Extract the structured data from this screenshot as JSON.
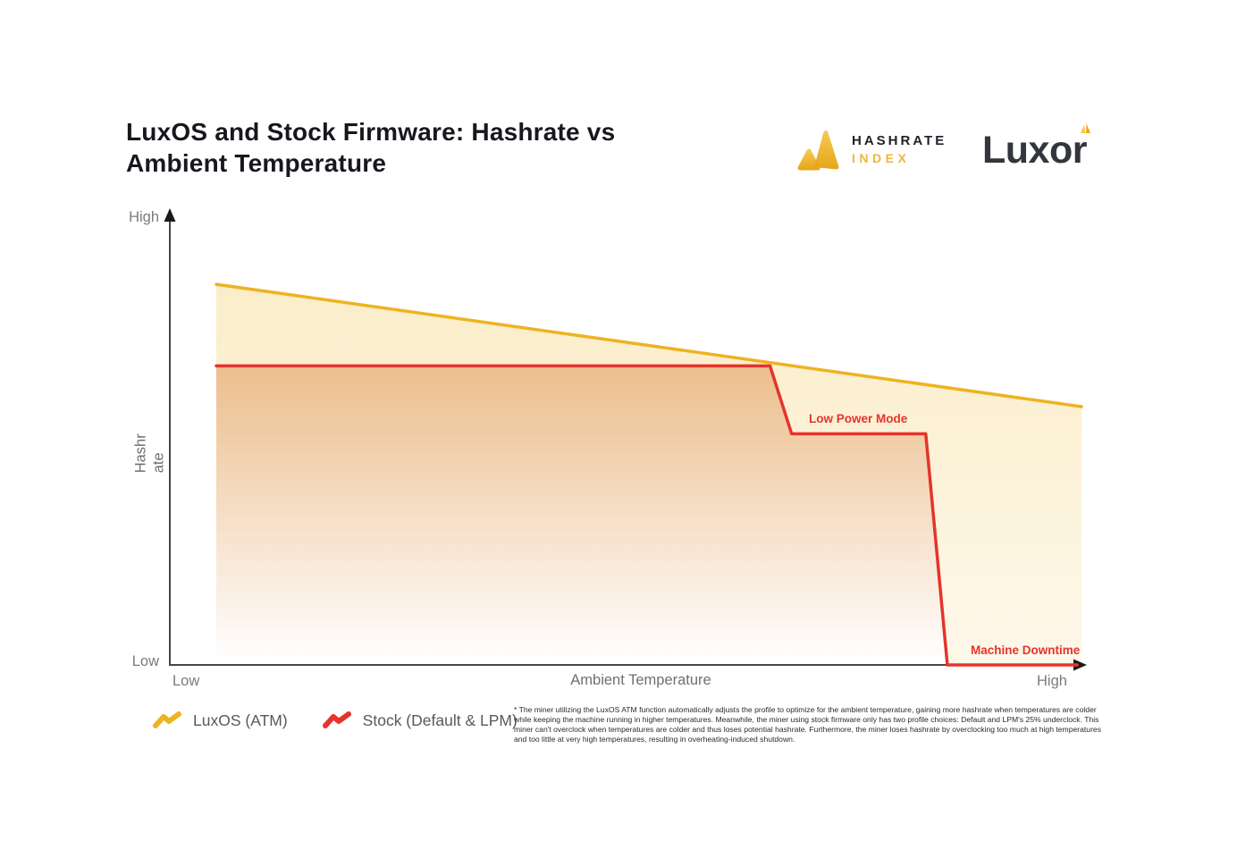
{
  "header": {
    "title": "LuxOS and Stock Firmware: Hashrate vs Ambient Temperature"
  },
  "logos": {
    "hashrate_index": {
      "line1": "HASHRATE",
      "line2": "INDEX",
      "icon": "hashrate-index-triangles",
      "accent_color": "#EFB63C"
    },
    "luxor": {
      "text": "Luxor",
      "icon": "luxor-triangle-mark",
      "accent_color": "#F0B92E"
    }
  },
  "chart_data": {
    "type": "line",
    "title": "LuxOS and Stock Firmware: Hashrate vs Ambient Temperature",
    "xlabel": "Ambient Temperature",
    "ylabel": "Hashrate",
    "x_axis_ticks": [
      "Low",
      "High"
    ],
    "y_axis_ticks": [
      "Low",
      "High"
    ],
    "axis_note": "qualitative axes, values normalized 0-100",
    "grid": false,
    "legend_position": "bottom-left",
    "series": [
      {
        "name": "LuxOS (ATM)",
        "color": "#EDB321",
        "fill_top": "#FBEDC9",
        "fill_bottom": "#FEF8EA",
        "points": [
          {
            "x": 0,
            "y": 84
          },
          {
            "x": 100,
            "y": 57
          }
        ]
      },
      {
        "name": "Stock (Default & LPM)",
        "color": "#E5342B",
        "fill_top": "#ECBE8D",
        "fill_bottom": "#FFFFFF",
        "points": [
          {
            "x": 0,
            "y": 66
          },
          {
            "x": 64,
            "y": 66
          },
          {
            "x": 66.5,
            "y": 51
          },
          {
            "x": 82,
            "y": 51
          },
          {
            "x": 84.5,
            "y": 0
          },
          {
            "x": 99.5,
            "y": 0
          }
        ]
      }
    ],
    "annotations": [
      {
        "text": "Low Power Mode",
        "color": "#E5342B"
      },
      {
        "text": "Machine Downtime",
        "color": "#E5342B"
      }
    ]
  },
  "axes_labels": {
    "y_high": "High",
    "y_low": "Low",
    "x_low": "Low",
    "x_high": "High"
  },
  "legend": {
    "items": [
      {
        "label": "LuxOS (ATM)",
        "color": "#EDB321"
      },
      {
        "label": "Stock (Default & LPM)",
        "color": "#E5342B"
      }
    ]
  },
  "footnote": "* The miner utilizing the LuxOS ATM function automatically adjusts the profile to optimize for the ambient temperature, gaining more hashrate when temperatures are colder while keeping the machine running in higher temperatures. Meanwhile, the miner using stock firmware only has two profile choices: Default and LPM's 25% underclock. This miner can't overclock when temperatures are colder and thus loses potential hashrate. Furthermore, the miner loses hashrate by overclocking too much at high temperatures and too little at very high temperatures, resulting in overheating-induced shutdown."
}
